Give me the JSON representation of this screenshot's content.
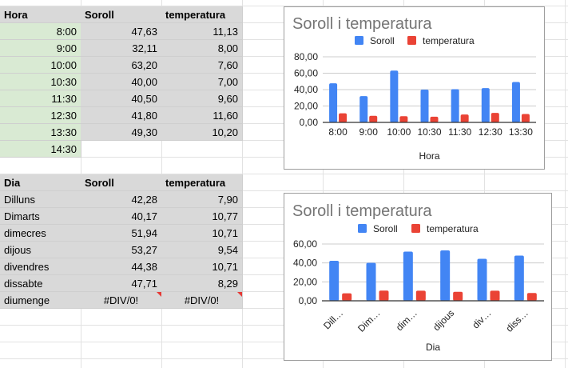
{
  "table_hours": {
    "headers": [
      "Hora",
      "Soroll",
      "temperatura"
    ],
    "rows": [
      [
        "8:00",
        "47,63",
        "11,13"
      ],
      [
        "9:00",
        "32,11",
        "8,00"
      ],
      [
        "10:00",
        "63,20",
        "7,60"
      ],
      [
        "10:30",
        "40,00",
        "7,00"
      ],
      [
        "11:30",
        "40,50",
        "9,60"
      ],
      [
        "12:30",
        "41,80",
        "11,60"
      ],
      [
        "13:30",
        "49,30",
        "10,20"
      ],
      [
        "14:30",
        "",
        ""
      ]
    ]
  },
  "table_days": {
    "headers": [
      "Dia",
      "Soroll",
      "temperatura"
    ],
    "rows": [
      [
        "Dilluns",
        "42,28",
        "7,90"
      ],
      [
        "Dimarts",
        "40,17",
        "10,77"
      ],
      [
        "dimecres",
        "51,94",
        "10,71"
      ],
      [
        "dijous",
        "53,27",
        "9,54"
      ],
      [
        "divendres",
        "44,38",
        "10,71"
      ],
      [
        "dissabte",
        "47,71",
        "8,29"
      ],
      [
        "diumenge",
        "#DIV/0!",
        "#DIV/0!"
      ]
    ]
  },
  "colors": {
    "soroll": "#4285f4",
    "temperatura": "#ea4335",
    "header_fill": "#d9d9d9",
    "hour_fill": "#d9ead3"
  },
  "chart_data": [
    {
      "type": "bar",
      "title": "Soroll i temperatura",
      "xlabel": "Hora",
      "ylabel": "",
      "categories": [
        "8:00",
        "9:00",
        "10:00",
        "10:30",
        "11:30",
        "12:30",
        "13:30"
      ],
      "series": [
        {
          "name": "Soroll",
          "values": [
            47.63,
            32.11,
            63.2,
            40.0,
            40.5,
            41.8,
            49.3
          ]
        },
        {
          "name": "temperatura",
          "values": [
            11.13,
            8.0,
            7.6,
            7.0,
            9.6,
            11.6,
            10.2
          ]
        }
      ],
      "ylim": [
        0,
        80
      ],
      "yticks": [
        "0,00",
        "20,00",
        "40,00",
        "60,00",
        "80,00"
      ],
      "grid": true,
      "legend": "top"
    },
    {
      "type": "bar",
      "title": "Soroll i temperatura",
      "xlabel": "Dia",
      "ylabel": "",
      "categories": [
        "Dill…",
        "Dim…",
        "dim…",
        "dijous",
        "div…",
        "diss…"
      ],
      "series": [
        {
          "name": "Soroll",
          "values": [
            42.28,
            40.17,
            51.94,
            53.27,
            44.38,
            47.71
          ]
        },
        {
          "name": "temperatura",
          "values": [
            7.9,
            10.77,
            10.71,
            9.54,
            10.71,
            8.29
          ]
        }
      ],
      "ylim": [
        0,
        60
      ],
      "yticks": [
        "0,00",
        "20,00",
        "40,00",
        "60,00"
      ],
      "grid": true,
      "legend": "top"
    }
  ]
}
